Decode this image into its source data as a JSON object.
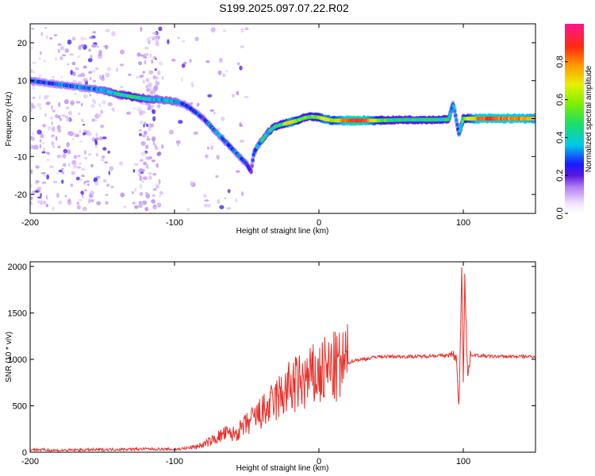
{
  "title": "S199.2025.097.07.22.R02",
  "chart_data": [
    {
      "type": "heatmap",
      "xlabel": "Height of straight line (km)",
      "ylabel": "Frequency (Hz)",
      "xlim": [
        -200,
        150
      ],
      "ylim": [
        -25,
        25
      ],
      "xticks": [
        "-200",
        "-100",
        "0",
        "100"
      ],
      "yticks": [
        "20",
        "10",
        "0",
        "-10",
        "-20"
      ],
      "colorbar": {
        "label": "Normalized spectral amplitude",
        "range": [
          0,
          1
        ],
        "ticks": [
          "0.0",
          "0.2",
          "0.4",
          "0.6",
          "0.8"
        ]
      },
      "ridge": {
        "x": [
          -200,
          -190,
          -180,
          -170,
          -160,
          -150,
          -140,
          -130,
          -120,
          -110,
          -100,
          -95,
          -90,
          -85,
          -80,
          -75,
          -70,
          -65,
          -60,
          -55,
          -50,
          -47,
          -45,
          -42,
          -40,
          -38,
          -35,
          -30,
          -25,
          -20,
          -15,
          -10,
          -5,
          0,
          5,
          10,
          20,
          30,
          40,
          50,
          60,
          70,
          80,
          90,
          93,
          95,
          97,
          100,
          110,
          120,
          130,
          140,
          150
        ],
        "y": [
          10,
          9.5,
          9,
          8.5,
          8,
          7.5,
          6.5,
          5.8,
          5.2,
          5,
          4.5,
          4,
          3,
          1.5,
          0,
          -2,
          -4,
          -6,
          -8,
          -10,
          -12,
          -14,
          -9,
          -7,
          -6,
          -5,
          -3.5,
          -2,
          -1.5,
          -1,
          -0.5,
          0.2,
          0.5,
          0.3,
          -0.2,
          -0.5,
          -0.5,
          -0.5,
          -0.5,
          -0.4,
          -0.3,
          -0.3,
          -0.3,
          -0.2,
          4,
          0,
          -4,
          0,
          0,
          0,
          0,
          0,
          0
        ],
        "amplitude": [
          0.3,
          0.25,
          0.3,
          0.3,
          0.3,
          0.35,
          0.4,
          0.45,
          0.4,
          0.35,
          0.35,
          0.3,
          0.3,
          0.25,
          0.25,
          0.3,
          0.3,
          0.3,
          0.3,
          0.3,
          0.25,
          0.2,
          0.3,
          0.3,
          0.35,
          0.4,
          0.4,
          0.45,
          0.5,
          0.75,
          0.6,
          0.5,
          0.5,
          0.55,
          0.75,
          0.6,
          0.85,
          0.9,
          0.6,
          0.45,
          0.45,
          0.45,
          0.45,
          0.45,
          0.3,
          0.3,
          0.3,
          0.5,
          0.8,
          0.85,
          0.8,
          0.8,
          0.75
        ]
      }
    },
    {
      "type": "line",
      "xlabel": "Height of straight line (km)",
      "ylabel": "SNR (10 * v/v)",
      "xlim": [
        -200,
        150
      ],
      "ylim": [
        0,
        2050
      ],
      "xticks": [
        "-200",
        "-100",
        "0",
        "100"
      ],
      "yticks": [
        "0",
        "500",
        "1000",
        "1500",
        "2000"
      ],
      "series": [
        {
          "color": "#e8302a",
          "x": [
            -200,
            -180,
            -160,
            -140,
            -120,
            -100,
            -90,
            -80,
            -75,
            -70,
            -65,
            -60,
            -55,
            -50,
            -45,
            -40,
            -35,
            -30,
            -25,
            -20,
            -15,
            -10,
            -5,
            0,
            5,
            10,
            15,
            20,
            25,
            30,
            35,
            40,
            50,
            60,
            70,
            80,
            90,
            93,
            95,
            97,
            98,
            99,
            100,
            101,
            103,
            105,
            110,
            120,
            130,
            140,
            150
          ],
          "y": [
            30,
            20,
            25,
            30,
            35,
            30,
            45,
            80,
            120,
            160,
            200,
            190,
            230,
            300,
            360,
            420,
            470,
            560,
            620,
            700,
            730,
            760,
            800,
            830,
            880,
            900,
            910,
            960,
            990,
            1000,
            1010,
            1030,
            1030,
            1030,
            1030,
            1040,
            1040,
            1040,
            1030,
            500,
            1200,
            2050,
            700,
            1900,
            800,
            1050,
            1040,
            1030,
            1030,
            1030,
            1030
          ]
        }
      ]
    }
  ]
}
